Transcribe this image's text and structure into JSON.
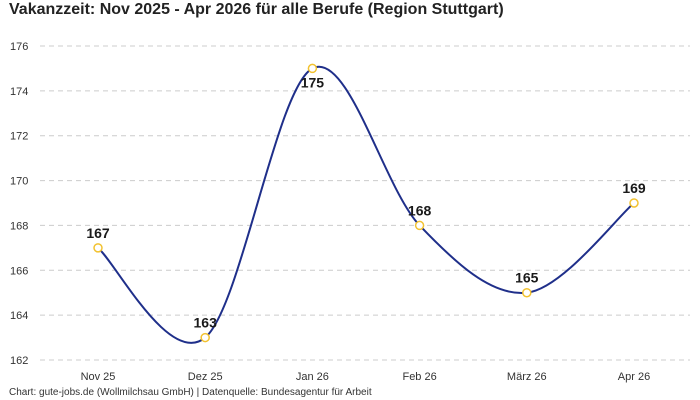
{
  "title": "Vakanzzeit: Nov 2025 - Apr 2026 für alle Berufe (Region Stuttgart)",
  "caption": "Chart: gute-jobs.de (Wollmilchsau GmbH) | Datenquelle: Bundesagentur für Arbeit",
  "colors": {
    "line": "#1f2f8a",
    "marker_stroke": "#f2c230",
    "grid": "#cccccc"
  },
  "chart_data": {
    "type": "line",
    "categories": [
      "Nov 25",
      "Dez 25",
      "Jan 26",
      "Feb 26",
      "März 26",
      "Apr 26"
    ],
    "series": [
      {
        "values": [
          167,
          163,
          175,
          168,
          165,
          169
        ]
      }
    ],
    "data_labels": [
      "167",
      "163",
      "175",
      "168",
      "165",
      "169"
    ],
    "ylim": [
      162,
      176
    ],
    "yticks": [
      162,
      164,
      166,
      168,
      170,
      172,
      174,
      176
    ],
    "ytick_labels": [
      "162",
      "164",
      "166",
      "168",
      "170",
      "172",
      "174",
      "176"
    ],
    "xlabel": "",
    "ylabel": "",
    "grid": true,
    "smooth": true,
    "legend": "none"
  }
}
